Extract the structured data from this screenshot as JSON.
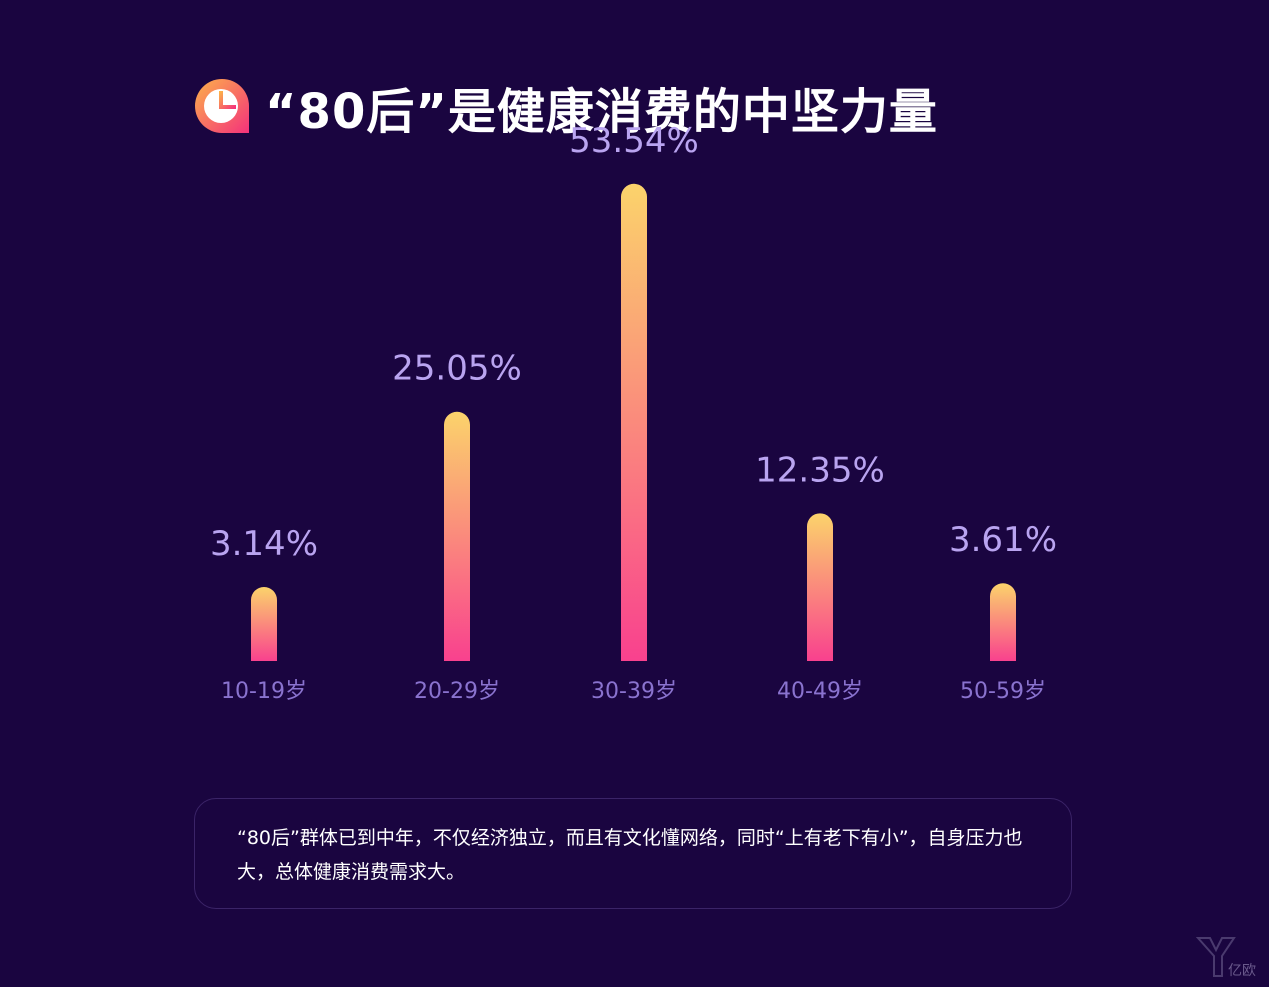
{
  "title": "“80后”是健康消费的中坚力量",
  "icon": "pie-chart-icon",
  "colors": {
    "background": "#1a0540",
    "bar_top": "#fbd36b",
    "bar_bottom": "#f9418e",
    "value_label": "#b9a4f0",
    "category_label": "#8a73cf"
  },
  "chart_data": {
    "type": "bar",
    "categories": [
      "10-19岁",
      "20-29岁",
      "30-39岁",
      "40-49岁",
      "50-59岁"
    ],
    "values": [
      3.14,
      25.05,
      53.54,
      12.35,
      3.61
    ],
    "value_labels": [
      "3.14%",
      "25.05%",
      "53.54%",
      "12.35%",
      "3.61%"
    ],
    "title": "“80后”是健康消费的中坚力量",
    "xlabel": "",
    "ylabel": "",
    "grid": false,
    "legend": "none"
  },
  "caption": "“80后”群体已到中年，不仅经济独立，而且有文化懂网络，同时“上有老下有小”，自身压力也大，总体健康消费需求大。",
  "watermark": {
    "icon": "yiou-logo-icon",
    "text": "亿欧"
  }
}
